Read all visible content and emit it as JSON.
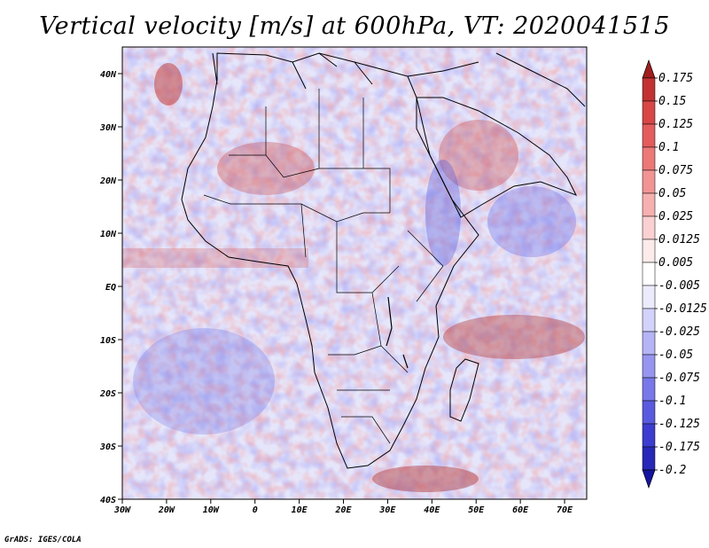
{
  "title": "Vertical velocity [m/s] at 600hPa, VT: 2020041515",
  "credit": "GrADS: IGES/COLA",
  "map": {
    "lon_labels": [
      "30W",
      "20W",
      "10W",
      "0",
      "10E",
      "20E",
      "30E",
      "40E",
      "50E",
      "60E",
      "70E"
    ],
    "lat_labels": [
      "40N",
      "30N",
      "20N",
      "10N",
      "EQ",
      "10S",
      "20S",
      "30S",
      "40S"
    ],
    "lon_range": [
      -30,
      75
    ],
    "lat_range": [
      -40,
      45
    ],
    "colors": {
      "background": "#e8e8ff",
      "coast": "#000000"
    }
  },
  "colorbar": {
    "levels": [
      "0.175",
      "0.15",
      "0.125",
      "0.1",
      "0.075",
      "0.05",
      "0.025",
      "0.0125",
      "0.005",
      "-0.005",
      "-0.0125",
      "-0.025",
      "-0.05",
      "-0.075",
      "-0.1",
      "-0.125",
      "-0.175",
      "-0.2"
    ],
    "colors": [
      "#a01e1e",
      "#c23232",
      "#d84646",
      "#e45c5c",
      "#ec7878",
      "#f29494",
      "#f6b0b0",
      "#fad0d0",
      "#fdebeb",
      "#ffffff",
      "#ebebfd",
      "#d2d2fa",
      "#b4b4f6",
      "#9696f0",
      "#7878ea",
      "#5a5ae0",
      "#3c3cd0",
      "#2828b8",
      "#1414a0"
    ]
  }
}
